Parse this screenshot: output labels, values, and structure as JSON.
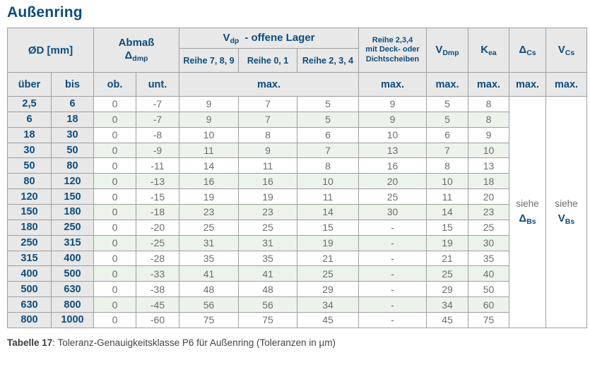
{
  "page": {
    "title": "Außenring",
    "caption_bold": "Tabelle 17",
    "caption_rest": ": Toleranz-Genauigkeitsklasse P6 für Außenring (Toleranzen in µm)"
  },
  "colors": {
    "accent_blue": "#0d4c7e",
    "header_gray": "#e8e8e8",
    "stripe_green": "#ebf3eb",
    "grid_line": "#9e9e9e",
    "data_text": "#6d6d6d"
  },
  "table": {
    "header": {
      "od": "ØD  [mm]",
      "abmass_line1": "Abmaß",
      "abmass_delta": "Δ",
      "abmass_sub": "dmp",
      "vdp_main": "V",
      "vdp_sub": "dp",
      "vdp_rest": "-  offene Lager",
      "reihe789": "Reihe 7, 8, 9",
      "reihe01": "Reihe 0, 1",
      "reihe234": "Reihe 2, 3, 4",
      "deck_line1": "Reihe 2,3,4",
      "deck_line2": "mit Deck- oder",
      "deck_line3": "Dichtscheiben",
      "vdmp_main": "V",
      "vdmp_sub": "Dmp",
      "kea_main": "K",
      "kea_sub": "ea",
      "dcs_main": "Δ",
      "dcs_sub": "Cs",
      "vcs_main": "V",
      "vcs_sub": "Cs",
      "uber": "über",
      "bis": "bis",
      "ob": "ob.",
      "unt": "unt.",
      "max": "max."
    },
    "siehe_dbs": {
      "line1": "siehe",
      "main": "Δ",
      "sub": "Bs"
    },
    "siehe_vbs": {
      "line1": "siehe",
      "main": "V",
      "sub": "Bs"
    },
    "columns": [
      "über",
      "bis",
      "ob.",
      "unt.",
      "Reihe 7,8,9",
      "Reihe 0,1",
      "Reihe 2,3,4",
      "Reihe 2,3,4 mit Deck- oder Dichtscheiben",
      "VDmp",
      "Kea"
    ],
    "rows": [
      [
        "2,5",
        "6",
        "0",
        "-7",
        "9",
        "7",
        "5",
        "9",
        "5",
        "8"
      ],
      [
        "6",
        "18",
        "0",
        "-7",
        "9",
        "7",
        "5",
        "9",
        "5",
        "8"
      ],
      [
        "18",
        "30",
        "0",
        "-8",
        "10",
        "8",
        "6",
        "10",
        "6",
        "9"
      ],
      [
        "30",
        "50",
        "0",
        "-9",
        "11",
        "9",
        "7",
        "13",
        "7",
        "10"
      ],
      [
        "50",
        "80",
        "0",
        "-11",
        "14",
        "11",
        "8",
        "16",
        "8",
        "13"
      ],
      [
        "80",
        "120",
        "0",
        "-13",
        "16",
        "16",
        "10",
        "20",
        "10",
        "18"
      ],
      [
        "120",
        "150",
        "0",
        "-15",
        "19",
        "19",
        "11",
        "25",
        "11",
        "20"
      ],
      [
        "150",
        "180",
        "0",
        "-18",
        "23",
        "23",
        "14",
        "30",
        "14",
        "23"
      ],
      [
        "180",
        "250",
        "0",
        "-20",
        "25",
        "25",
        "15",
        "-",
        "15",
        "25"
      ],
      [
        "250",
        "315",
        "0",
        "-25",
        "31",
        "31",
        "19",
        "-",
        "19",
        "30"
      ],
      [
        "315",
        "400",
        "0",
        "-28",
        "35",
        "35",
        "21",
        "-",
        "21",
        "35"
      ],
      [
        "400",
        "500",
        "0",
        "-33",
        "41",
        "41",
        "25",
        "-",
        "25",
        "40"
      ],
      [
        "500",
        "630",
        "0",
        "-38",
        "48",
        "48",
        "29",
        "-",
        "29",
        "50"
      ],
      [
        "630",
        "800",
        "0",
        "-45",
        "56",
        "56",
        "34",
        "-",
        "34",
        "60"
      ],
      [
        "800",
        "1000",
        "0",
        "-60",
        "75",
        "75",
        "45",
        "-",
        "45",
        "75"
      ]
    ]
  }
}
